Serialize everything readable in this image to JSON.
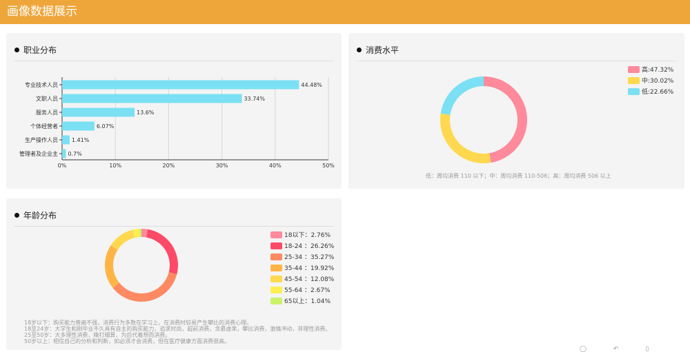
{
  "header": {
    "title": "画像数据展示"
  },
  "occupation": {
    "title": "职业分布",
    "chart_data": {
      "type": "bar",
      "orientation": "horizontal",
      "categories": [
        "专业技术人员",
        "文职人员",
        "服务人员",
        "个体经营者",
        "生产操作人员",
        "管理者及企业主"
      ],
      "values": [
        44.48,
        33.74,
        13.6,
        6.07,
        1.41,
        0.7
      ],
      "labels": [
        "44.48%",
        "33.74%",
        "13.6%",
        "6.07%",
        "1.41%",
        "0.7%"
      ],
      "xlim": [
        0,
        50
      ],
      "xticks": [
        "0%",
        "10%",
        "20%",
        "30%",
        "40%",
        "50%"
      ],
      "xtick_values": [
        0,
        10,
        20,
        30,
        40,
        50
      ],
      "bar_color": "#7be0f3",
      "grid": true
    }
  },
  "spending": {
    "title": "消费水平",
    "chart_data": {
      "type": "pie",
      "donut": true,
      "categories": [
        "高",
        "中",
        "低"
      ],
      "values": [
        47.32,
        30.02,
        22.66
      ],
      "legend": [
        "高:47.32%",
        "中:30.02%",
        "低:22.66%"
      ],
      "colors": [
        "#fe8a9b",
        "#fed94f",
        "#7be0f3"
      ],
      "legend_position": "top-right"
    },
    "note": "低：周均消费 110 以下；中：周均消费 110-506；高：周均消费 506 以上"
  },
  "age": {
    "title": "年龄分布",
    "chart_data": {
      "type": "pie",
      "donut": true,
      "categories": [
        "18以下",
        "18-24",
        "25-34",
        "35-44",
        "45-54",
        "55-64",
        "65以上"
      ],
      "values": [
        2.76,
        26.26,
        35.27,
        19.92,
        12.08,
        2.67,
        1.04
      ],
      "legend": [
        "18以下：2.76%",
        "18-24 ：26.26%",
        "25-34 ：35.27%",
        "35-44 ：19.92%",
        "45-54 ：12.08%",
        "55-64 ：2.67%",
        "65以上：1.04%"
      ],
      "colors": [
        "#fe8a9b",
        "#fd4a68",
        "#fd8a63",
        "#feb546",
        "#fed94f",
        "#feee52",
        "#ccf26b"
      ],
      "legend_position": "top-right"
    },
    "notes": [
      "18岁以下：购买能力普遍不强，消费行为多数在学习上，在消费时较易产生攀比的消费心理。",
      "18至24岁：大学生和刚毕业不久具有自主的购买能力，追求时尚，超前消费，贪慕虚荣，攀比消费，激情冲动，非理性消费。",
      "25至50岁：大多理性消费，精打细算，为后代着想而消费。",
      "50岁以上：相信自己的分析和判断，如必须才会消费，但在医疗健康方面消费很高。"
    ]
  },
  "footer": {
    "icons": "◯ ↶ ▯ ◯ ◯"
  }
}
